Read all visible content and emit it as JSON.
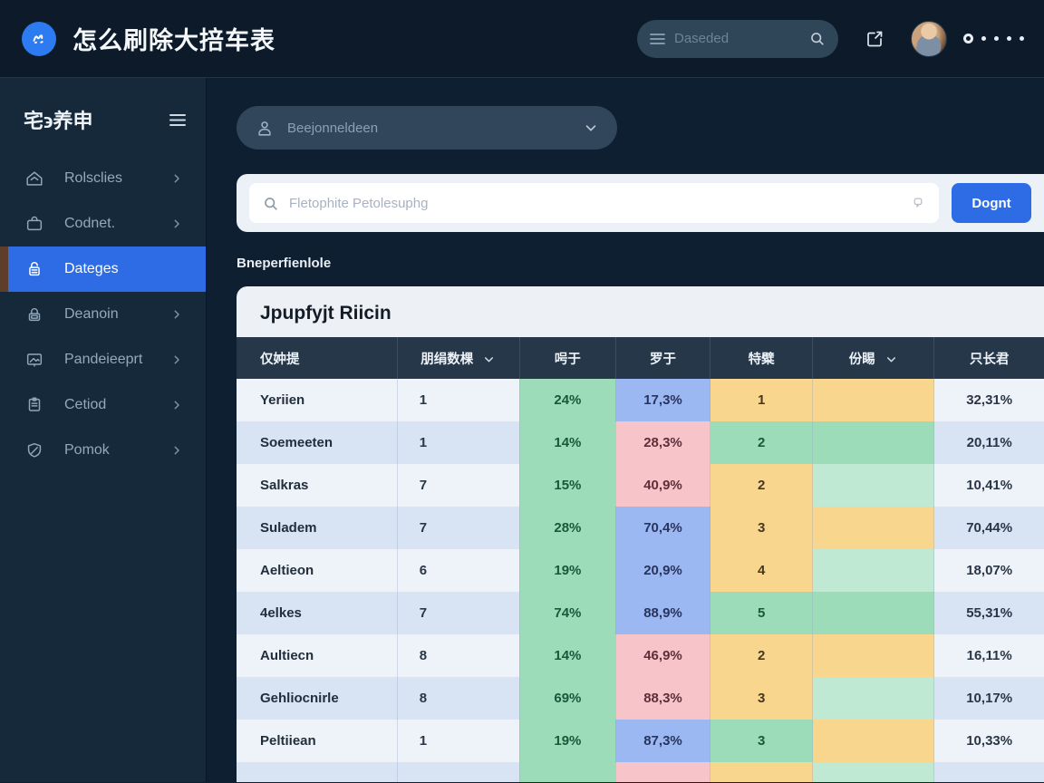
{
  "navbar": {
    "title": "怎么刷除大掊车表",
    "logo_icon": "scribble-logo-icon",
    "search": {
      "placeholder": "Daseded",
      "menu_icon": "hamburger-icon",
      "search_icon": "magnifier-icon"
    },
    "compose_icon": "compose-icon",
    "avatar_icon": "user-avatar",
    "overflow_icon": "ring-and-dots-icon"
  },
  "sidebar": {
    "title": "宅϶养申",
    "menu_icon": "hamburger-icon",
    "items": [
      {
        "label": "Rolsclies",
        "icon": "home-icon",
        "chevron": true,
        "active": false
      },
      {
        "label": "Codnet.",
        "icon": "bag-icon",
        "chevron": true,
        "active": false
      },
      {
        "label": "Dateges",
        "icon": "safe-lock-icon",
        "chevron": false,
        "active": true
      },
      {
        "label": "Deanoin",
        "icon": "padlock-icon",
        "chevron": true,
        "active": false
      },
      {
        "label": "Pandeieeprt",
        "icon": "image-icon",
        "chevron": true,
        "active": false
      },
      {
        "label": "Cetiod",
        "icon": "clipboard-icon",
        "chevron": true,
        "active": false
      },
      {
        "label": "Pomok",
        "icon": "shield-icon",
        "chevron": true,
        "active": false
      }
    ]
  },
  "main": {
    "filter_dropdown": {
      "value": "Beejonneldeen",
      "icon": "person-icon",
      "chevron_icon": "chevron-down-icon"
    },
    "search": {
      "placeholder": "Fletophite Petolesuphg",
      "button_label": "Dognt",
      "left_icon": "magnifier-icon",
      "right_icon": "pin-icon"
    },
    "section_label": "Bneperfienlole",
    "card": {
      "title": "Jpupfyjt Riicin",
      "table": {
        "columns": [
          {
            "label": "仅妕提",
            "sortable": false
          },
          {
            "label": "朋绢数棵",
            "sortable": true
          },
          {
            "label": "呺于",
            "sortable": false
          },
          {
            "label": "罗于",
            "sortable": false
          },
          {
            "label": "特糪",
            "sortable": false
          },
          {
            "label": "份睗",
            "sortable": true
          },
          {
            "label": "只长君",
            "sortable": false
          }
        ],
        "rows": [
          {
            "cells": [
              {
                "t": "Yeriien"
              },
              {
                "t": "1"
              },
              {
                "t": "24%",
                "bg": "green"
              },
              {
                "t": "17,3%",
                "bg": "blue"
              },
              {
                "t": "1",
                "bg": "yellow"
              },
              {
                "t": "",
                "bg": "yellow"
              },
              {
                "t": "32,31%"
              }
            ]
          },
          {
            "cells": [
              {
                "t": "Soemeeten"
              },
              {
                "t": "1"
              },
              {
                "t": "14%",
                "bg": "green"
              },
              {
                "t": "28,3%",
                "bg": "pink"
              },
              {
                "t": "2",
                "bg": "green"
              },
              {
                "t": "",
                "bg": "green"
              },
              {
                "t": "20,11%"
              }
            ]
          },
          {
            "cells": [
              {
                "t": "Salkras"
              },
              {
                "t": "7"
              },
              {
                "t": "15%",
                "bg": "green"
              },
              {
                "t": "40,9%",
                "bg": "pink"
              },
              {
                "t": "2",
                "bg": "yellow"
              },
              {
                "t": "",
                "bg": "green2"
              },
              {
                "t": "10,41%"
              }
            ]
          },
          {
            "cells": [
              {
                "t": "Suladem"
              },
              {
                "t": "7"
              },
              {
                "t": "28%",
                "bg": "green"
              },
              {
                "t": "70,4%",
                "bg": "blue"
              },
              {
                "t": "3",
                "bg": "yellow"
              },
              {
                "t": "",
                "bg": "yellow"
              },
              {
                "t": "70,44%"
              }
            ]
          },
          {
            "cells": [
              {
                "t": "Aeltieon"
              },
              {
                "t": "6"
              },
              {
                "t": "19%",
                "bg": "green"
              },
              {
                "t": "20,9%",
                "bg": "blue"
              },
              {
                "t": "4",
                "bg": "yellow"
              },
              {
                "t": "",
                "bg": "green2"
              },
              {
                "t": "18,07%"
              }
            ]
          },
          {
            "cells": [
              {
                "t": "4elkes"
              },
              {
                "t": "7"
              },
              {
                "t": "74%",
                "bg": "green"
              },
              {
                "t": "88,9%",
                "bg": "blue"
              },
              {
                "t": "5",
                "bg": "green"
              },
              {
                "t": "",
                "bg": "green"
              },
              {
                "t": "55,31%"
              }
            ]
          },
          {
            "cells": [
              {
                "t": "Aultiecn"
              },
              {
                "t": "8"
              },
              {
                "t": "14%",
                "bg": "green"
              },
              {
                "t": "46,9%",
                "bg": "pink"
              },
              {
                "t": "2",
                "bg": "yellow"
              },
              {
                "t": "",
                "bg": "yellow"
              },
              {
                "t": "16,11%"
              }
            ]
          },
          {
            "cells": [
              {
                "t": "Gehliocnirle"
              },
              {
                "t": "8"
              },
              {
                "t": "69%",
                "bg": "green"
              },
              {
                "t": "88,3%",
                "bg": "pink"
              },
              {
                "t": "3",
                "bg": "yellow"
              },
              {
                "t": "",
                "bg": "green2"
              },
              {
                "t": "10,17%"
              }
            ]
          },
          {
            "cells": [
              {
                "t": "Peltiiean"
              },
              {
                "t": "1"
              },
              {
                "t": "19%",
                "bg": "green"
              },
              {
                "t": "87,3%",
                "bg": "blue"
              },
              {
                "t": "3",
                "bg": "green"
              },
              {
                "t": "",
                "bg": "yellow"
              },
              {
                "t": "10,33%"
              }
            ]
          },
          {
            "cells": [
              {
                "t": ""
              },
              {
                "t": ""
              },
              {
                "t": "",
                "bg": "green"
              },
              {
                "t": "",
                "bg": "pink"
              },
              {
                "t": "",
                "bg": "yellow"
              },
              {
                "t": "",
                "bg": "green2"
              },
              {
                "t": ""
              }
            ]
          }
        ]
      }
    }
  },
  "colors": {
    "accent_blue": "#2e6ce5",
    "navbar_bg": "#0c1a29",
    "sidebar_bg": "#16293b",
    "main_bg": "#0e1f31",
    "table_header_bg": "#263749",
    "cell_green": "#9ddcb9",
    "cell_green_light": "#c0e9d3",
    "cell_blue": "#9cb8f2",
    "cell_pink": "#f7c4c9",
    "cell_yellow": "#f8d68e",
    "row_odd": "#eef2f9",
    "row_even": "#d8e3f4"
  }
}
